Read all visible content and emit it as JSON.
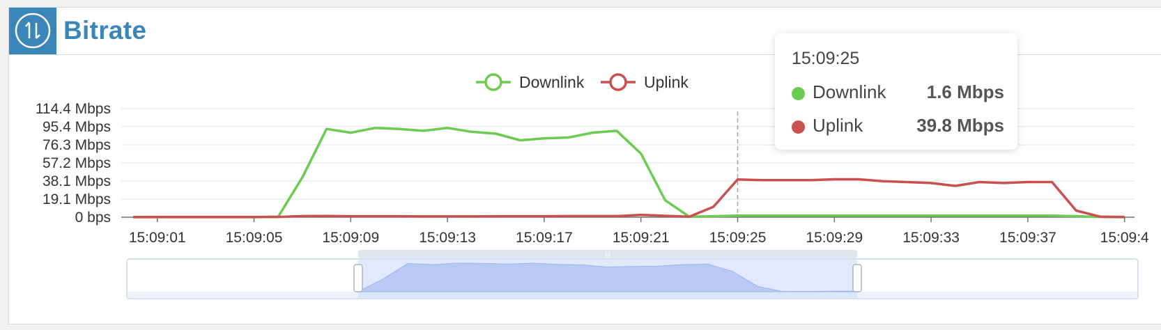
{
  "header": {
    "title": "Bitrate",
    "icon": "up-down-arrows-icon"
  },
  "colors": {
    "accent": "#3a86b8",
    "downlink": "#6ccb50",
    "uplink": "#c9504f",
    "grid": "#dde3ea",
    "slider_fill": "#d5e0fa",
    "slider_border": "#c8d6ee"
  },
  "chart_data": {
    "type": "line",
    "legend": [
      "Downlink",
      "Uplink"
    ],
    "legend_position": "top-center",
    "y_tick_labels": [
      "0 bps",
      "19.1 Mbps",
      "38.1 Mbps",
      "57.2 Mbps",
      "76.3 Mbps",
      "95.4 Mbps",
      "114.4 Mbps"
    ],
    "y_ticks": [
      0,
      19.1,
      38.1,
      57.2,
      76.3,
      95.4,
      114.4
    ],
    "ylim": [
      0,
      114.4
    ],
    "x_tick_labels": [
      "15:09:01",
      "15:09:05",
      "15:09:09",
      "15:09:13",
      "15:09:17",
      "15:09:21",
      "15:09:25",
      "15:09:29",
      "15:09:33",
      "15:09:37",
      "15:09:4"
    ],
    "x": [
      "15:09:00",
      "15:09:01",
      "15:09:02",
      "15:09:03",
      "15:09:04",
      "15:09:05",
      "15:09:06",
      "15:09:07",
      "15:09:08",
      "15:09:09",
      "15:09:10",
      "15:09:11",
      "15:09:12",
      "15:09:13",
      "15:09:14",
      "15:09:15",
      "15:09:16",
      "15:09:17",
      "15:09:18",
      "15:09:19",
      "15:09:20",
      "15:09:21",
      "15:09:22",
      "15:09:23",
      "15:09:24",
      "15:09:25",
      "15:09:26",
      "15:09:27",
      "15:09:28",
      "15:09:29",
      "15:09:30",
      "15:09:31",
      "15:09:32",
      "15:09:33",
      "15:09:34",
      "15:09:35",
      "15:09:36",
      "15:09:37",
      "15:09:38",
      "15:09:39",
      "15:09:40",
      "15:09:41"
    ],
    "series": [
      {
        "name": "Downlink",
        "values": [
          0,
          0,
          0,
          0,
          0,
          0,
          0.5,
          42,
          93,
          89,
          94,
          93,
          91,
          94,
          90,
          88,
          81,
          83,
          84,
          89,
          91,
          67,
          18,
          0.5,
          1.0,
          1.6,
          1.6,
          1.6,
          1.6,
          1.6,
          1.6,
          1.6,
          1.6,
          1.6,
          1.6,
          1.6,
          1.6,
          1.6,
          1.6,
          1.0,
          0.3,
          0
        ]
      },
      {
        "name": "Uplink",
        "values": [
          0.2,
          0.3,
          0.3,
          0.3,
          0.3,
          0.3,
          0.3,
          1.2,
          1.3,
          1.0,
          1.0,
          1.0,
          0.8,
          0.8,
          0.8,
          1.0,
          1.0,
          1.0,
          1.2,
          1.2,
          1.2,
          2.5,
          1.5,
          0.5,
          11,
          39.8,
          39,
          39,
          39,
          40,
          40,
          38,
          37,
          36,
          33,
          37,
          36,
          37,
          37,
          7,
          0.5,
          0.3
        ]
      }
    ],
    "tooltip": {
      "time": "15:09:25",
      "rows": [
        {
          "name": "Downlink",
          "value": "1.6 Mbps"
        },
        {
          "name": "Uplink",
          "value": "39.8 Mbps"
        }
      ]
    },
    "zoom_window": {
      "start": "15:09:06",
      "end": "15:09:26"
    }
  }
}
